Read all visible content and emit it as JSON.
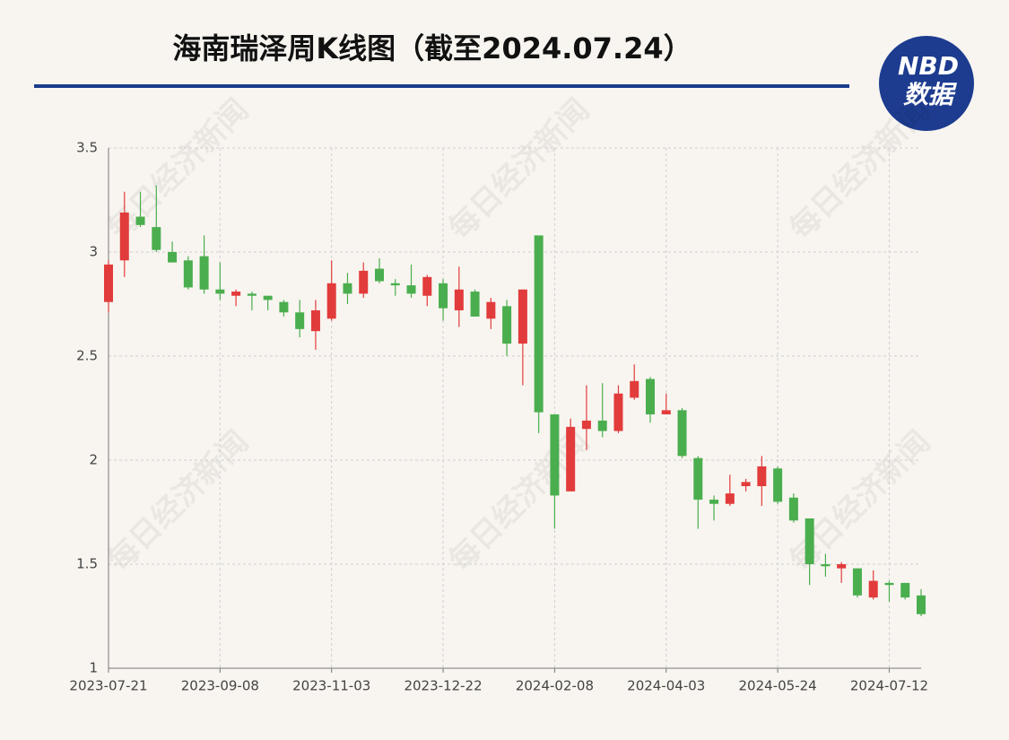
{
  "chart_data": {
    "type": "candlestick",
    "title": "海南瑞泽周K线图（截至2024.07.24）",
    "logo": {
      "top": "NBD",
      "bottom": "数据"
    },
    "watermark": "每日经济新闻",
    "categories": [
      "2023-07-21",
      null,
      null,
      null,
      null,
      null,
      null,
      "2023-09-08",
      null,
      null,
      null,
      null,
      null,
      null,
      "2023-11-03",
      null,
      null,
      null,
      null,
      null,
      null,
      "2023-12-22",
      null,
      null,
      null,
      null,
      null,
      null,
      "2024-02-08",
      null,
      null,
      null,
      null,
      null,
      null,
      "2024-04-03",
      null,
      null,
      null,
      null,
      null,
      null,
      "2024-05-24",
      null,
      null,
      null,
      null,
      null,
      null,
      "2024-07-12",
      null,
      null
    ],
    "open": [
      2.76,
      2.96,
      3.17,
      3.12,
      3.0,
      2.96,
      2.98,
      2.82,
      2.79,
      2.8,
      2.79,
      2.76,
      2.71,
      2.62,
      2.68,
      2.85,
      2.8,
      2.92,
      2.85,
      2.84,
      2.79,
      2.85,
      2.72,
      2.81,
      2.68,
      2.74,
      2.56,
      3.08,
      2.22,
      1.85,
      2.15,
      2.19,
      2.14,
      2.3,
      2.39,
      2.22,
      2.24,
      2.01,
      1.81,
      1.79,
      1.875,
      1.875,
      1.96,
      1.82,
      1.72,
      1.5,
      1.48,
      1.48,
      1.34,
      1.41,
      1.41,
      1.35
    ],
    "high": [
      2.96,
      3.29,
      3.29,
      3.32,
      3.05,
      2.98,
      3.08,
      2.95,
      2.82,
      2.81,
      2.79,
      2.77,
      2.77,
      2.77,
      2.96,
      2.9,
      2.95,
      2.97,
      2.87,
      2.94,
      2.89,
      2.87,
      2.93,
      2.82,
      2.78,
      2.77,
      2.82,
      3.08,
      2.22,
      2.2,
      2.36,
      2.37,
      2.36,
      2.46,
      2.4,
      2.32,
      2.25,
      2.02,
      1.83,
      1.93,
      1.91,
      2.02,
      1.97,
      1.84,
      1.72,
      1.55,
      1.51,
      1.48,
      1.47,
      1.42,
      1.41,
      1.38
    ],
    "low": [
      2.71,
      2.88,
      3.12,
      3.0,
      2.95,
      2.82,
      2.8,
      2.77,
      2.74,
      2.72,
      2.72,
      2.69,
      2.59,
      2.53,
      2.67,
      2.75,
      2.78,
      2.85,
      2.79,
      2.78,
      2.74,
      2.67,
      2.64,
      2.69,
      2.63,
      2.5,
      2.36,
      2.13,
      1.67,
      1.85,
      2.05,
      2.11,
      2.13,
      2.29,
      2.18,
      2.22,
      2.01,
      1.67,
      1.71,
      1.78,
      1.85,
      1.78,
      1.79,
      1.7,
      1.4,
      1.44,
      1.41,
      1.34,
      1.33,
      1.32,
      1.33,
      1.25
    ],
    "close": [
      2.94,
      3.19,
      3.13,
      3.01,
      2.95,
      2.83,
      2.82,
      2.8,
      2.81,
      2.79,
      2.77,
      2.71,
      2.63,
      2.72,
      2.85,
      2.8,
      2.91,
      2.86,
      2.84,
      2.8,
      2.88,
      2.73,
      2.82,
      2.69,
      2.76,
      2.56,
      2.82,
      2.23,
      1.83,
      2.16,
      2.19,
      2.14,
      2.32,
      2.38,
      2.22,
      2.24,
      2.02,
      1.81,
      1.79,
      1.84,
      1.895,
      1.97,
      1.8,
      1.71,
      1.5,
      1.49,
      1.5,
      1.35,
      1.42,
      1.4,
      1.34,
      1.26
    ],
    "up_color": "#e23b3b",
    "down_color": "#4aae4e",
    "ylim": [
      1,
      3.5
    ],
    "yticks": [
      1,
      1.5,
      2,
      2.5,
      3,
      3.5
    ],
    "grid": true
  }
}
